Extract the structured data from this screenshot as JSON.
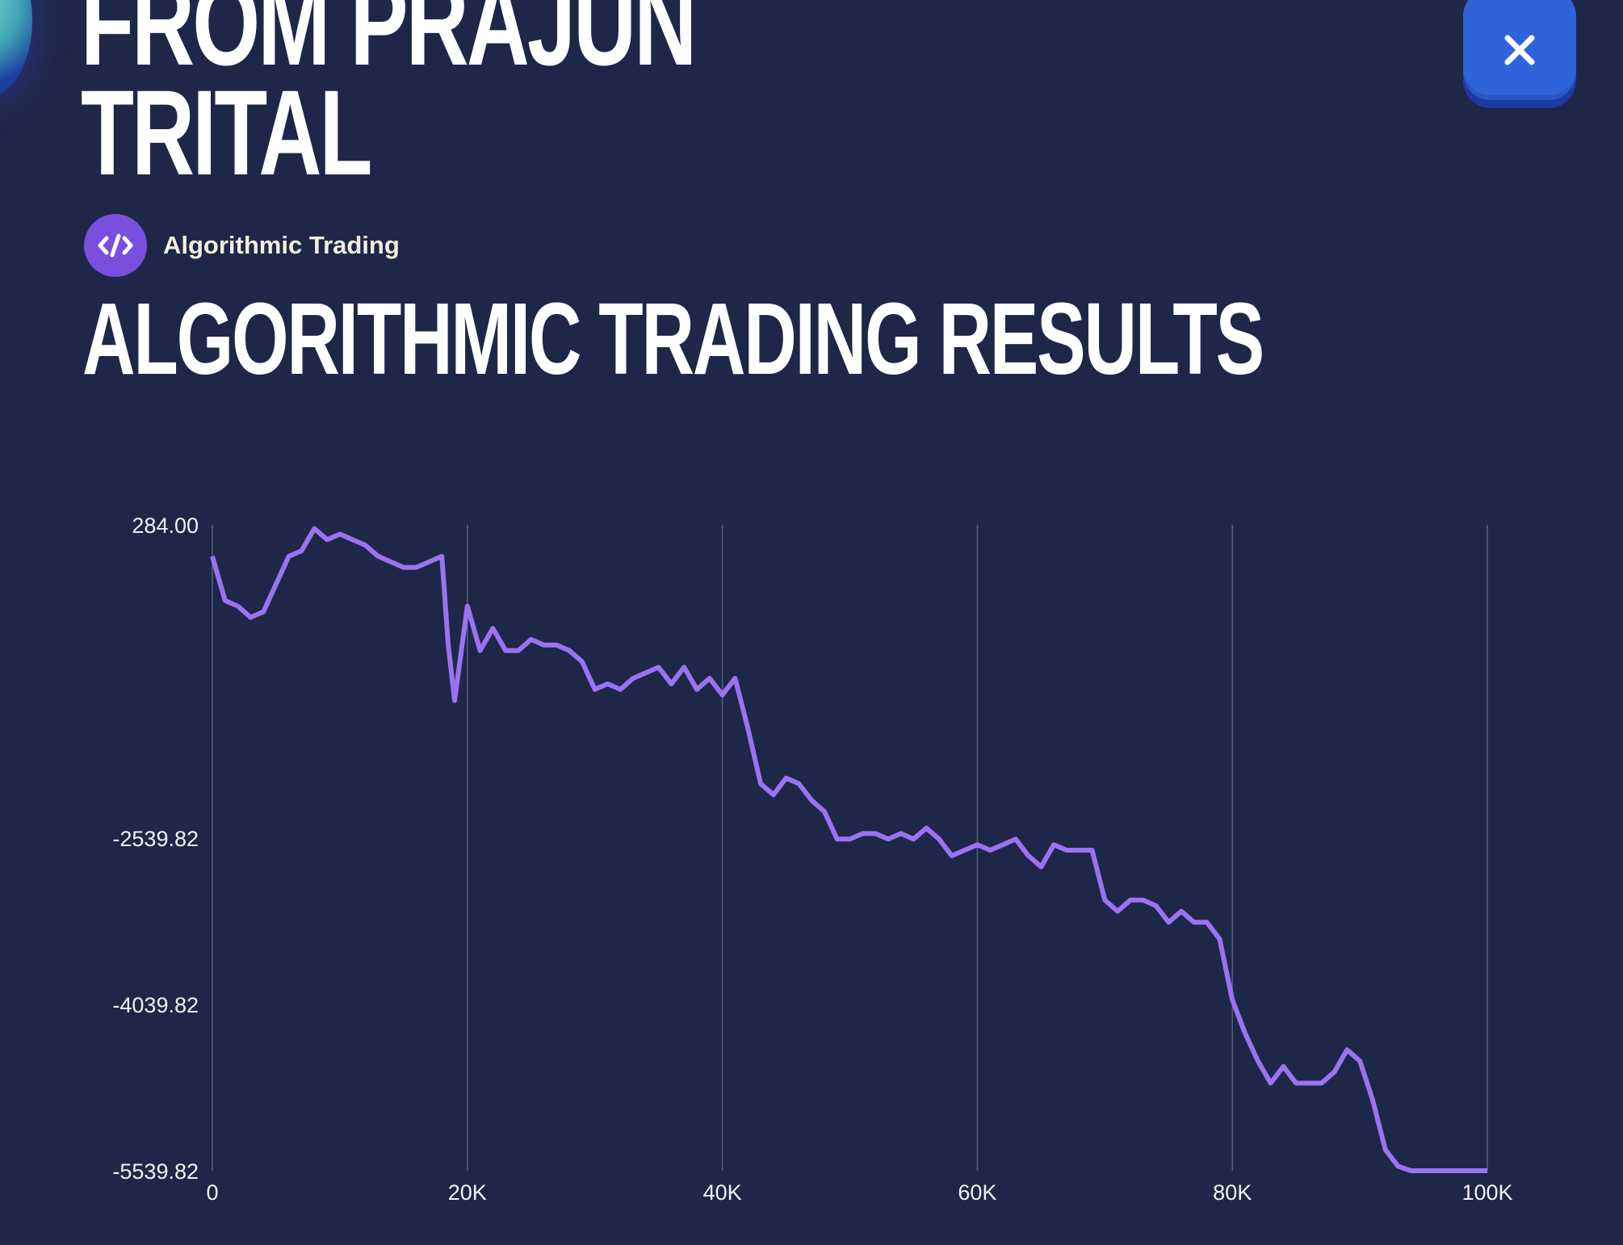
{
  "header": {
    "title_lines": [
      "FROM PRAJUN",
      "TRITAL"
    ],
    "close_icon": "close-icon"
  },
  "category": {
    "icon": "code-icon",
    "label": "Algorithmic Trading",
    "icon_color": "#7a4fe0"
  },
  "section": {
    "title": "ALGORITHMIC TRADING RESULTS"
  },
  "colors": {
    "background": "#1e2747",
    "line": "#9b72f2",
    "grid": "#59607f",
    "close_button": "#2f63da"
  },
  "chart_data": {
    "type": "line",
    "title": "",
    "xlabel": "",
    "ylabel": "",
    "xlim": [
      0,
      100000
    ],
    "ylim": [
      -5539.82,
      284.0
    ],
    "x_ticks": [
      0,
      20000,
      40000,
      60000,
      80000,
      100000
    ],
    "x_tick_labels": [
      "0",
      "20K",
      "40K",
      "60K",
      "80K",
      "100K"
    ],
    "y_tick_values": [
      284.0,
      -2539.82,
      -4039.82,
      -5539.82
    ],
    "y_tick_labels": [
      "284.00",
      "-2539.82",
      "-4039.82",
      "-5539.82"
    ],
    "vertical_grid": true,
    "horizontal_grid": false,
    "series": [
      {
        "x": [
          0,
          1000,
          2000,
          3000,
          4000,
          5000,
          6000,
          7000,
          8000,
          9000,
          10000,
          11000,
          12000,
          13000,
          14000,
          15000,
          16000,
          17000,
          18000,
          18500,
          19000,
          20000,
          21000,
          22000,
          23000,
          24000,
          25000,
          26000,
          27000,
          28000,
          29000,
          30000,
          31000,
          32000,
          33000,
          34000,
          35000,
          36000,
          37000,
          38000,
          39000,
          40000,
          41000,
          42000,
          43000,
          44000,
          45000,
          46000,
          47000,
          48000,
          49000,
          50000,
          51000,
          52000,
          53000,
          54000,
          55000,
          56000,
          57000,
          58000,
          59000,
          60000,
          61000,
          62000,
          63000,
          64000,
          65000,
          66000,
          67000,
          68000,
          69000,
          70000,
          71000,
          72000,
          73000,
          74000,
          75000,
          76000,
          77000,
          78000,
          79000,
          80000,
          81000,
          82000,
          83000,
          84000,
          85000,
          86000,
          87000,
          88000,
          89000,
          90000,
          91000,
          92000,
          93000,
          94000,
          95000,
          96000,
          97000,
          98000,
          99000,
          100000
        ],
        "y": [
          0,
          -400,
          -450,
          -550,
          -500,
          -250,
          0,
          50,
          250,
          150,
          200,
          150,
          100,
          0,
          -50,
          -100,
          -100,
          -50,
          0,
          -800,
          -1300,
          -450,
          -850,
          -650,
          -850,
          -850,
          -750,
          -800,
          -800,
          -850,
          -950,
          -1200,
          -1150,
          -1200,
          -1100,
          -1050,
          -1000,
          -1150,
          -1000,
          -1200,
          -1100,
          -1250,
          -1100,
          -1550,
          -2050,
          -2150,
          -2000,
          -2050,
          -2200,
          -2300,
          -2550,
          -2550,
          -2500,
          -2500,
          -2550,
          -2500,
          -2550,
          -2450,
          -2550,
          -2700,
          -2650,
          -2600,
          -2650,
          -2600,
          -2550,
          -2700,
          -2800,
          -2600,
          -2650,
          -2650,
          -2650,
          -3100,
          -3200,
          -3100,
          -3100,
          -3150,
          -3300,
          -3200,
          -3300,
          -3300,
          -3450,
          -4000,
          -4300,
          -4550,
          -4750,
          -4600,
          -4750,
          -4750,
          -4750,
          -4650,
          -4450,
          -4550,
          -4900,
          -5350,
          -5500,
          -5539.82,
          -5539.82,
          -5539.82,
          -5539.82,
          -5539.82,
          -5539.82,
          -5539.82
        ]
      }
    ]
  }
}
